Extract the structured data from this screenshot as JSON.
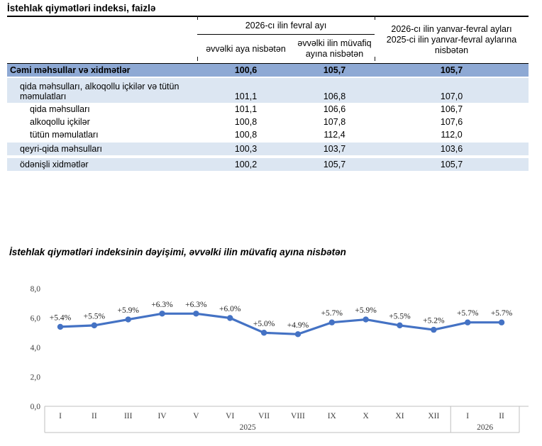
{
  "table": {
    "title": "İstehlak qiymətləri indeksi, faizlə",
    "header": {
      "group_col": "2026-cı ilin fevral ayı",
      "col_month_vs_prev": "əvvəlki aya nisbətən",
      "col_month_vs_prev_year": "əvvəlki ilin müvafiq ayına nisbətən",
      "col_cumulative_line1": "2026-cı ilin yanvar-fevral ayları",
      "col_cumulative_line2": "2025-ci ilin yanvar-fevral aylarına nisbətən"
    },
    "rows": [
      {
        "label": "Cəmi məhsullar və xidmətlər",
        "values": [
          "100,6",
          "105,7",
          "105,7"
        ],
        "style": "total",
        "indent": 0
      },
      {
        "label": "qida məhsulları, alkoqollu içkilər və tütün məmulatları",
        "values": [
          "101,1",
          "106,8",
          "107,0"
        ],
        "style": "band dbl",
        "indent": 1
      },
      {
        "label": "qida məhsulları",
        "values": [
          "101,1",
          "106,6",
          "106,7"
        ],
        "style": "plain",
        "indent": 2
      },
      {
        "label": "alkoqollu içkilər",
        "values": [
          "100,8",
          "107,8",
          "107,6"
        ],
        "style": "plain",
        "indent": 2
      },
      {
        "label": "tütün məmulatları",
        "values": [
          "100,8",
          "112,4",
          "112,0"
        ],
        "style": "plain",
        "indent": 2
      },
      {
        "label": "qeyri-qida məhsulları",
        "values": [
          "100,3",
          "103,7",
          "103,6"
        ],
        "style": "band",
        "indent": 1
      },
      {
        "label": "ödənişli xidmətlər",
        "values": [
          "100,2",
          "105,7",
          "105,7"
        ],
        "style": "band gap",
        "indent": 1
      }
    ],
    "colors": {
      "total_row_bg": "#8EA9D4",
      "band_row_bg": "#DCE6F2"
    }
  },
  "chart_data": {
    "type": "line",
    "title": "İstehlak qiymətləri indeksinin dəyişimi, əvvəlki ilin müvafiq ayına nisbətən",
    "categories": [
      "I",
      "II",
      "III",
      "IV",
      "V",
      "VI",
      "VII",
      "VIII",
      "IX",
      "X",
      "XI",
      "XII",
      "I",
      "II"
    ],
    "year_groups": [
      {
        "label": "2025",
        "count": 12
      },
      {
        "label": "2026",
        "count": 2
      }
    ],
    "values": [
      5.4,
      5.5,
      5.9,
      6.3,
      6.3,
      6.0,
      5.0,
      4.9,
      5.7,
      5.9,
      5.5,
      5.2,
      5.7,
      5.7
    ],
    "point_labels": [
      "+5.4%",
      "+5.5%",
      "+5.9%",
      "+6.3%",
      "+6.3%",
      "+6.0%",
      "+5.0%",
      "+4.9%",
      "+5.7%",
      "+5.9%",
      "+5.5%",
      "+5.2%",
      "+5.7%",
      "+5.7%"
    ],
    "y_ticks": [
      "8,0",
      "6,0",
      "4,0",
      "2,0",
      "0,0"
    ],
    "ylim": [
      0,
      8
    ],
    "xlabel": "",
    "ylabel": "",
    "line_color": "#4472C4",
    "grid": false,
    "legend": false
  }
}
